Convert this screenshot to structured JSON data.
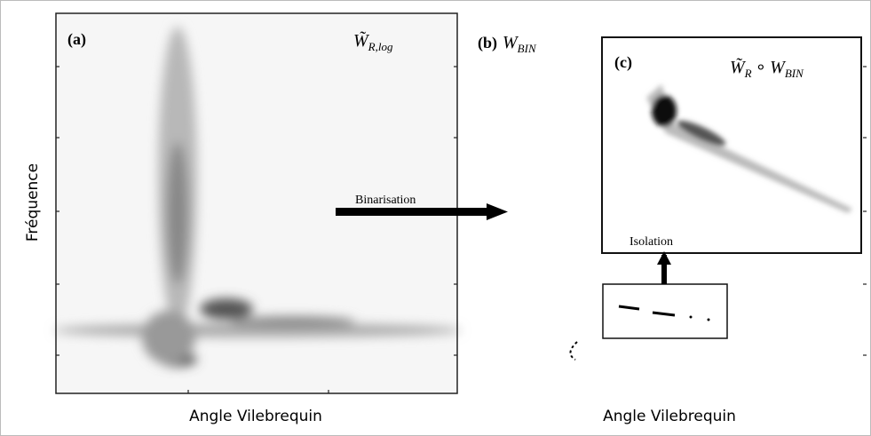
{
  "panels": [
    {
      "tag": "(a)",
      "symbol": "W̃",
      "subscript": "R,log"
    },
    {
      "tag": "(b)",
      "symbol": "W",
      "subscript": "BIN"
    },
    {
      "tag": "(c)",
      "symbol": "W̃",
      "subscript": "R",
      "operator": "∘",
      "symbol2": "W",
      "subscript2": "BIN"
    }
  ],
  "annotations": {
    "binarisation": "Binarisation",
    "isolation": "Isolation"
  },
  "axes": {
    "y_label": "Fréquence",
    "x_label_left": "Angle Vilebrequin",
    "x_label_right": "Angle Vilebrequin"
  }
}
